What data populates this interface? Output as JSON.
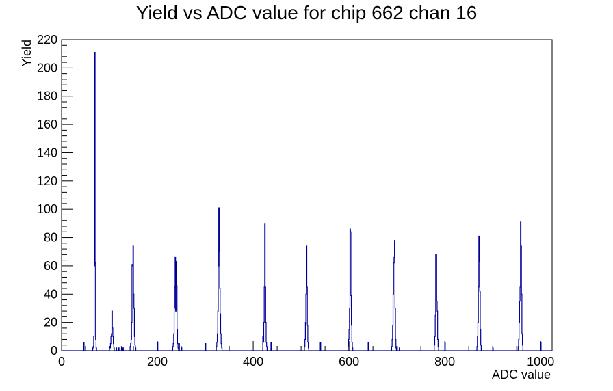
{
  "chart_data": {
    "type": "histogram",
    "title": "Yield vs ADC value for chip 662 chan 16",
    "xlabel": "ADC value",
    "ylabel": "Yield",
    "xlim": [
      0,
      1024
    ],
    "ylim": [
      0,
      220
    ],
    "xticks": [
      0,
      200,
      400,
      600,
      800,
      1000
    ],
    "yticks": [
      0,
      20,
      40,
      60,
      80,
      100,
      120,
      140,
      160,
      180,
      200,
      220
    ],
    "grid": false,
    "line_color": "#000099",
    "bin_width": 1,
    "bins": [
      [
        46,
        6
      ],
      [
        65,
        2
      ],
      [
        66,
        3
      ],
      [
        67,
        10
      ],
      [
        68,
        60
      ],
      [
        69,
        211
      ],
      [
        70,
        62
      ],
      [
        71,
        8
      ],
      [
        72,
        2
      ],
      [
        100,
        3
      ],
      [
        101,
        2
      ],
      [
        102,
        5
      ],
      [
        103,
        10
      ],
      [
        104,
        12
      ],
      [
        105,
        28
      ],
      [
        106,
        16
      ],
      [
        107,
        10
      ],
      [
        108,
        5
      ],
      [
        109,
        2
      ],
      [
        114,
        2
      ],
      [
        119,
        2
      ],
      [
        125,
        3
      ],
      [
        128,
        2
      ],
      [
        143,
        3
      ],
      [
        144,
        5
      ],
      [
        145,
        8
      ],
      [
        146,
        20
      ],
      [
        147,
        61
      ],
      [
        148,
        60
      ],
      [
        149,
        74
      ],
      [
        150,
        40
      ],
      [
        151,
        30
      ],
      [
        152,
        10
      ],
      [
        153,
        4
      ],
      [
        154,
        2
      ],
      [
        200,
        6
      ],
      [
        232,
        3
      ],
      [
        233,
        5
      ],
      [
        234,
        12
      ],
      [
        235,
        30
      ],
      [
        236,
        45
      ],
      [
        237,
        66
      ],
      [
        238,
        28
      ],
      [
        239,
        63
      ],
      [
        240,
        46
      ],
      [
        241,
        15
      ],
      [
        242,
        5
      ],
      [
        243,
        2
      ],
      [
        245,
        5
      ],
      [
        250,
        2
      ],
      [
        300,
        5
      ],
      [
        323,
        3
      ],
      [
        324,
        6
      ],
      [
        325,
        12
      ],
      [
        326,
        28
      ],
      [
        327,
        60
      ],
      [
        328,
        101
      ],
      [
        329,
        70
      ],
      [
        330,
        44
      ],
      [
        331,
        26
      ],
      [
        332,
        12
      ],
      [
        333,
        5
      ],
      [
        334,
        2
      ],
      [
        420,
        10
      ],
      [
        421,
        6
      ],
      [
        422,
        20
      ],
      [
        423,
        45
      ],
      [
        424,
        90
      ],
      [
        425,
        45
      ],
      [
        426,
        20
      ],
      [
        427,
        6
      ],
      [
        428,
        3
      ],
      [
        437,
        6
      ],
      [
        507,
        3
      ],
      [
        508,
        8
      ],
      [
        509,
        20
      ],
      [
        510,
        40
      ],
      [
        511,
        74
      ],
      [
        512,
        45
      ],
      [
        513,
        18
      ],
      [
        514,
        6
      ],
      [
        515,
        2
      ],
      [
        540,
        6
      ],
      [
        598,
        3
      ],
      [
        599,
        8
      ],
      [
        600,
        15
      ],
      [
        601,
        30
      ],
      [
        602,
        86
      ],
      [
        603,
        84
      ],
      [
        604,
        39
      ],
      [
        605,
        18
      ],
      [
        606,
        6
      ],
      [
        607,
        2
      ],
      [
        640,
        6
      ],
      [
        689,
        3
      ],
      [
        690,
        8
      ],
      [
        691,
        18
      ],
      [
        692,
        40
      ],
      [
        693,
        62
      ],
      [
        694,
        66
      ],
      [
        695,
        78
      ],
      [
        696,
        30
      ],
      [
        697,
        8
      ],
      [
        698,
        2
      ],
      [
        700,
        3
      ],
      [
        705,
        2
      ],
      [
        778,
        4
      ],
      [
        779,
        10
      ],
      [
        780,
        25
      ],
      [
        781,
        68
      ],
      [
        782,
        68
      ],
      [
        783,
        35
      ],
      [
        784,
        28
      ],
      [
        785,
        8
      ],
      [
        786,
        3
      ],
      [
        800,
        6
      ],
      [
        867,
        3
      ],
      [
        868,
        10
      ],
      [
        869,
        20
      ],
      [
        870,
        45
      ],
      [
        871,
        81
      ],
      [
        872,
        63
      ],
      [
        873,
        42
      ],
      [
        874,
        15
      ],
      [
        875,
        4
      ],
      [
        900,
        2
      ],
      [
        953,
        3
      ],
      [
        954,
        8
      ],
      [
        955,
        20
      ],
      [
        956,
        35
      ],
      [
        957,
        45
      ],
      [
        958,
        91
      ],
      [
        959,
        74
      ],
      [
        960,
        40
      ],
      [
        961,
        12
      ],
      [
        962,
        4
      ],
      [
        1000,
        6
      ]
    ]
  }
}
